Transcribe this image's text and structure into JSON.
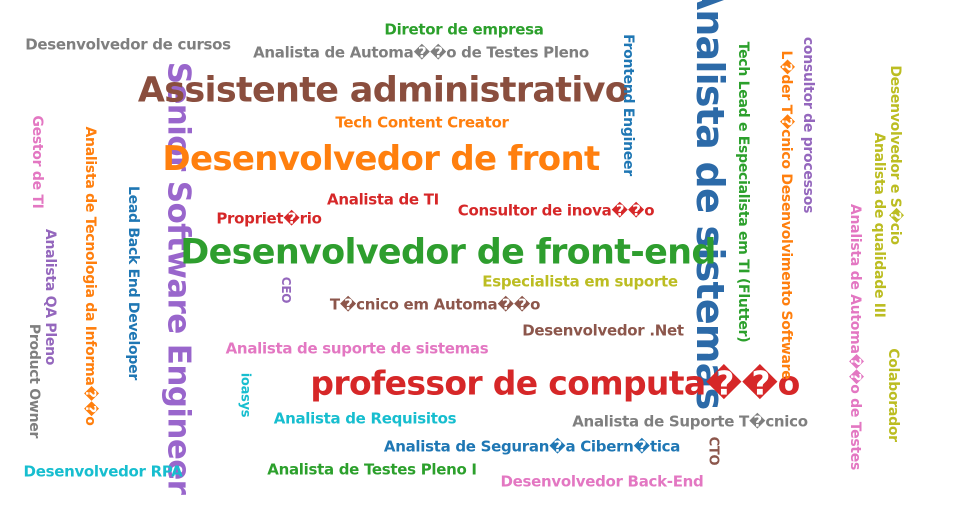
{
  "words": [
    {
      "text": "Analista de sistemas",
      "color": "#2c6aa8"
    },
    {
      "text": "Senior Software Engineer",
      "color": "#9966cc"
    },
    {
      "text": "Assistente administrativo",
      "color": "#8a4e3e"
    },
    {
      "text": "Desenvolvedor de front-end",
      "color": "#2e9e2e"
    },
    {
      "text": "Desenvolvedor de front",
      "color": "#ff7f0e"
    },
    {
      "text": "professor de computa��o",
      "color": "#d62728"
    },
    {
      "text": "Diretor de empresa",
      "color": "#2ca02c"
    },
    {
      "text": "Desenvolvedor de cursos",
      "color": "#7f7f7f"
    },
    {
      "text": "Analista de Automa��o de Testes Pleno",
      "color": "#7f7f7f"
    },
    {
      "text": "Tech Content Creator",
      "color": "#ff7f0e"
    },
    {
      "text": "Analista de TI",
      "color": "#d62728"
    },
    {
      "text": "Propriet�rio",
      "color": "#d62728"
    },
    {
      "text": "Consultor de inova��o",
      "color": "#d62728"
    },
    {
      "text": "Especialista em suporte",
      "color": "#bcbd22"
    },
    {
      "text": "T�cnico em Automa��o",
      "color": "#8c564b"
    },
    {
      "text": "Desenvolvedor .Net",
      "color": "#8c564b"
    },
    {
      "text": "Analista de suporte de sistemas",
      "color": "#e377c2"
    },
    {
      "text": "Analista de Requisitos",
      "color": "#17becf"
    },
    {
      "text": "Analista de Suporte T�cnico",
      "color": "#7f7f7f"
    },
    {
      "text": "Analista de Seguran�a Cibern�tica",
      "color": "#1f77b4"
    },
    {
      "text": "Analista de Testes Pleno I",
      "color": "#2ca02c"
    },
    {
      "text": "Desenvolvedor RPA",
      "color": "#17becf"
    },
    {
      "text": "Desenvolvedor Back-End",
      "color": "#e377c2"
    },
    {
      "text": "Frontend Engineer",
      "color": "#1f77b4"
    },
    {
      "text": "Tech Lead e Especialista em TI (Flutter)",
      "color": "#2ca02c"
    },
    {
      "text": "L�der T�cnico Desenvolvimento Software",
      "color": "#ff7f0e"
    },
    {
      "text": "consultor de processos",
      "color": "#9467bd"
    },
    {
      "text": "Desenvolvedor e S�cio",
      "color": "#bcbd22"
    },
    {
      "text": "Analista de qualidade III",
      "color": "#bcbd22"
    },
    {
      "text": "Analista de Automa��o de Testes",
      "color": "#e377c2"
    },
    {
      "text": "Colaborador",
      "color": "#bcbd22"
    },
    {
      "text": "Gestor de TI",
      "color": "#e377c2"
    },
    {
      "text": "Analista de Tecnologia da Informa��o",
      "color": "#ff7f0e"
    },
    {
      "text": "Lead Back End Developer",
      "color": "#1f77b4"
    },
    {
      "text": "Analista QA Pleno",
      "color": "#9467bd"
    },
    {
      "text": "Product Owner",
      "color": "#7f7f7f"
    },
    {
      "text": "CEO",
      "color": "#9467bd"
    },
    {
      "text": "ioasys",
      "color": "#17becf"
    },
    {
      "text": "CTO",
      "color": "#8c564b"
    }
  ]
}
